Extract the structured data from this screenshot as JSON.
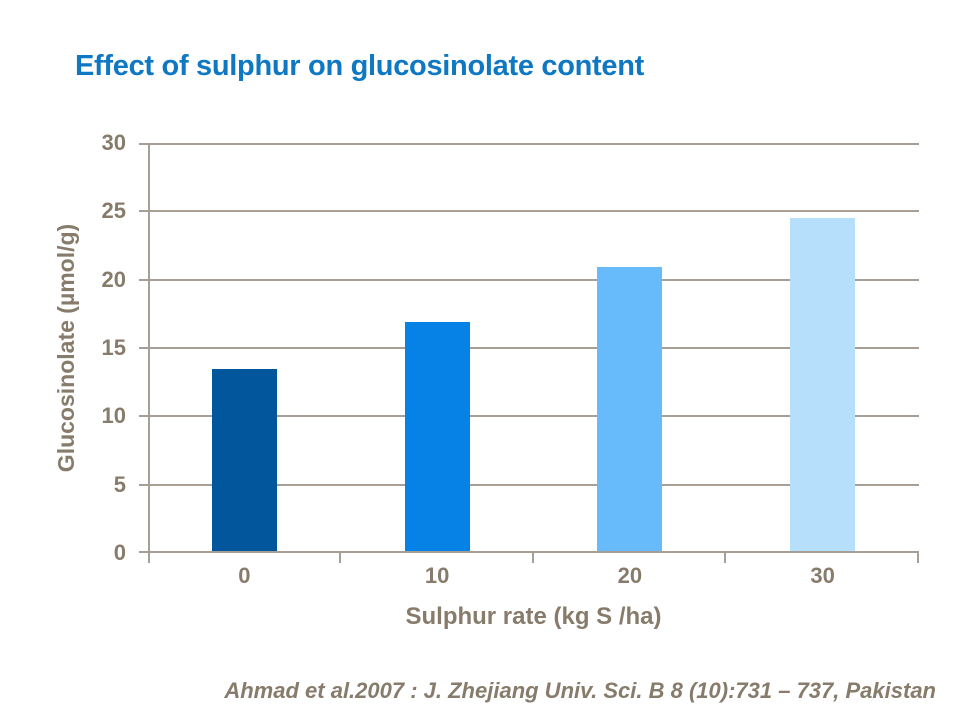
{
  "slide": {
    "title": "Effect of sulphur on glucosinolate content",
    "citation": "Ahmad et al.2007 : J. Zhejiang Univ. Sci. B 8 (10):731 – 737, Pakistan"
  },
  "colors": {
    "title_text": "#0E78C2",
    "axis_text": "#877C6B",
    "grid_line": "#A79E96",
    "bar_colors": [
      "#02569B",
      "#0682E6",
      "#67BBFA",
      "#B6DFFC"
    ]
  },
  "chart_data": {
    "type": "bar",
    "title": "Effect of sulphur on glucosinolate content",
    "categories": [
      "0",
      "10",
      "20",
      "30"
    ],
    "values": [
      13.5,
      16.9,
      20.9,
      24.5
    ],
    "xlabel": "Sulphur rate (kg S /ha)",
    "ylabel": "Glucosinolate (µmol/g)",
    "ylim": [
      0,
      30
    ],
    "yticks": [
      0,
      5,
      10,
      15,
      20,
      25,
      30
    ],
    "grid": "horizontal",
    "legend": "none",
    "annotation": "Ahmad et al.2007 : J. Zhejiang Univ. Sci. B 8 (10):731 – 737, Pakistan"
  }
}
